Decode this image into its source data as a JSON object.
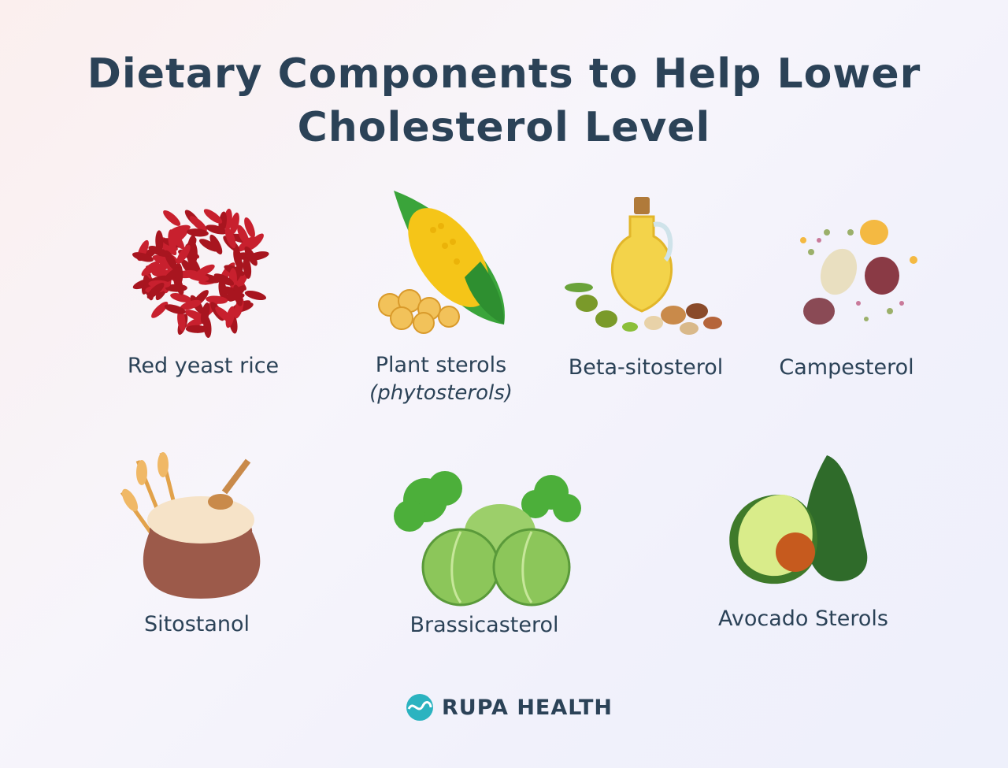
{
  "title": {
    "line1": "Dietary Components to Help Lower",
    "line2": "Cholesterol Level"
  },
  "items": [
    {
      "label": "Red yeast rice",
      "icon": "red-yeast-rice-icon"
    },
    {
      "label": "Plant sterols",
      "sublabel": "(phytosterols)",
      "icon": "corn-icon"
    },
    {
      "label": "Beta-sitosterol",
      "icon": "oil-and-nuts-icon"
    },
    {
      "label": "Campesterol",
      "icon": "beans-icon"
    },
    {
      "label": "Sitostanol",
      "icon": "wheat-flour-sack-icon"
    },
    {
      "label": "Brassicasterol",
      "icon": "broccoli-cabbage-icon"
    },
    {
      "label": "Avocado Sterols",
      "icon": "avocado-icon"
    }
  ],
  "brand": {
    "name": "RUPA HEALTH",
    "color": "#2b4257",
    "logo_color": "#2bb3c0"
  }
}
